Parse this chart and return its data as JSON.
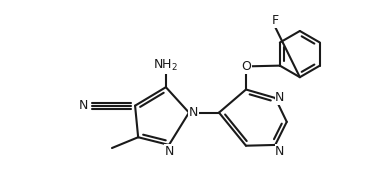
{
  "background_color": "#ffffff",
  "line_color": "#1a1a1a",
  "line_width": 1.5,
  "font_size": 9,
  "figsize": [
    3.77,
    1.94
  ],
  "dpi": 100,
  "xlim": [
    0,
    3.77
  ],
  "ylim": [
    0,
    1.94
  ]
}
